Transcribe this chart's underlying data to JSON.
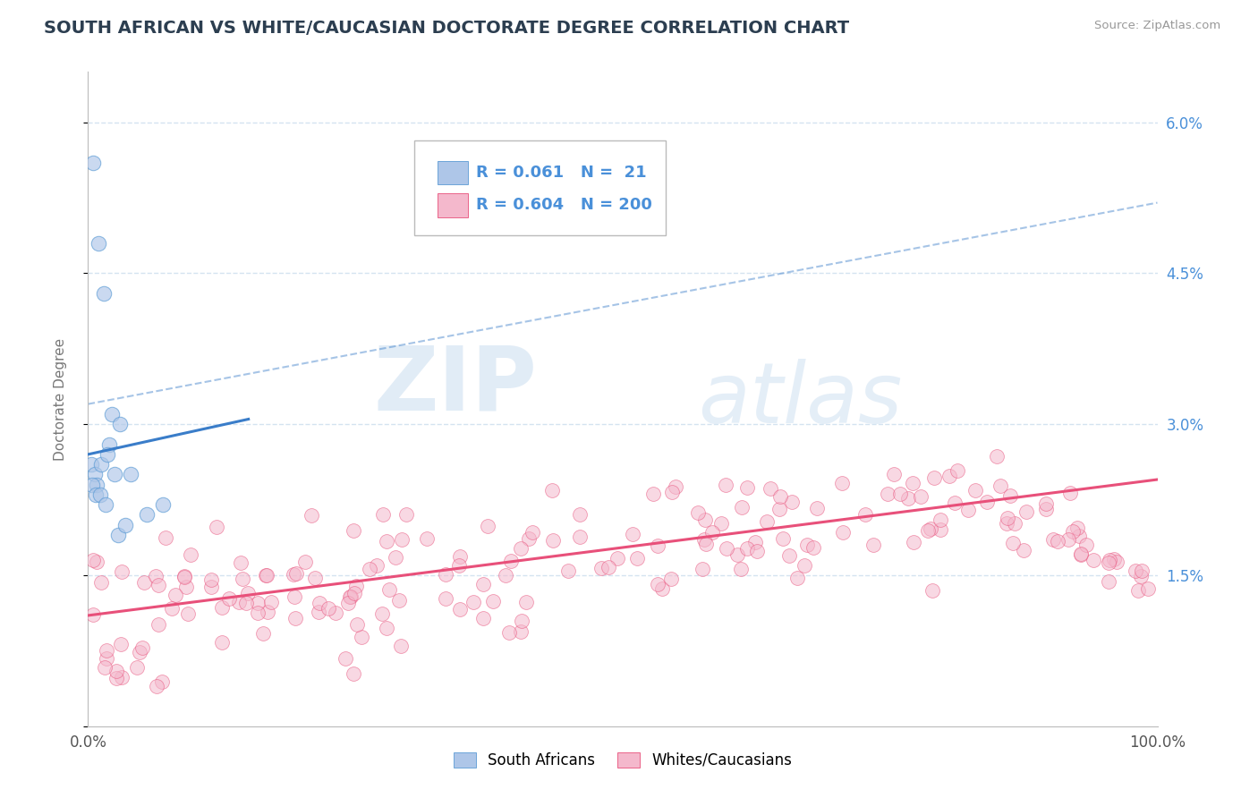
{
  "title": "SOUTH AFRICAN VS WHITE/CAUCASIAN DOCTORATE DEGREE CORRELATION CHART",
  "source": "Source: ZipAtlas.com",
  "ylabel": "Doctorate Degree",
  "xlim": [
    0,
    100
  ],
  "ylim": [
    0,
    6.5
  ],
  "yticks": [
    0,
    1.5,
    3.0,
    4.5,
    6.0
  ],
  "ytick_labels": [
    "",
    "1.5%",
    "3.0%",
    "4.5%",
    "6.0%"
  ],
  "legend_r_blue": "0.061",
  "legend_n_blue": "21",
  "legend_r_pink": "0.604",
  "legend_n_pink": "200",
  "blue_color": "#AEC6E8",
  "blue_edge_color": "#5B9BD5",
  "blue_line_color": "#3A7DC9",
  "pink_color": "#F4B8CC",
  "pink_edge_color": "#E8507A",
  "pink_line_color": "#E8507A",
  "grid_color": "#CADDED",
  "background_color": "#FFFFFF",
  "watermark_zip": "ZIP",
  "watermark_atlas": "atlas",
  "title_fontsize": 14,
  "label_fontsize": 11,
  "tick_color": "#4A90D9",
  "sa_seed": 42,
  "wc_seed": 99
}
